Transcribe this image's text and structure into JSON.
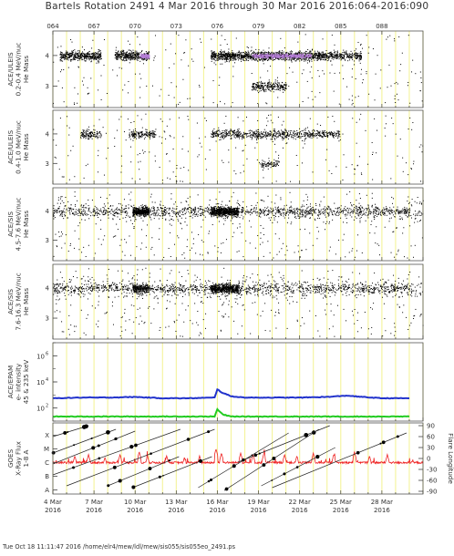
{
  "header": {
    "title": "Bartels Rotation 2491     4 Mar 2016 through 30 Mar 2016     2016:064-2016:090"
  },
  "footer": {
    "text": "Tue Oct 18 11:11:47 2016   /home/elr4/mew/ldl/mew/sis055/sis055eo_2491.ps"
  },
  "chart_data": [
    {
      "type": "scatter",
      "panel": "ace-ulels-0.2-0.4",
      "ylabel_lines": [
        "ACE/ULEIS",
        "0.2-0.4 MeV/nuc",
        "He Mass"
      ],
      "ytick_labels": [
        "3",
        "4"
      ],
      "ylim": [
        2.3,
        4.8
      ],
      "clusters": [
        {
          "day_range": [
            64.5,
            67.5
          ],
          "mass": 4.0,
          "density": 420
        },
        {
          "day_range": [
            68.5,
            71.0
          ],
          "mass": 4.0,
          "density": 380
        },
        {
          "day_range": [
            75.5,
            80.0
          ],
          "mass": 4.0,
          "density": 700
        },
        {
          "day_range": [
            78.5,
            81.0
          ],
          "mass": 3.0,
          "density": 240
        },
        {
          "day_range": [
            80.0,
            84.0
          ],
          "mass": 4.0,
          "density": 600
        },
        {
          "day_range": [
            84.0,
            86.5
          ],
          "mass": 4.0,
          "density": 250
        }
      ],
      "highlight_color": "#b57ed6"
    },
    {
      "type": "scatter",
      "panel": "ace-ulels-0.4-1.0",
      "ylabel_lines": [
        "ACE/ULEIS",
        "0.4-1.0 MeV/nuc",
        "He Mass"
      ],
      "ytick_labels": [
        "3",
        "4"
      ],
      "ylim": [
        2.3,
        4.8
      ],
      "clusters": [
        {
          "day_range": [
            66.0,
            67.5
          ],
          "mass": 4.0,
          "density": 120
        },
        {
          "day_range": [
            69.5,
            71.5
          ],
          "mass": 4.0,
          "density": 160
        },
        {
          "day_range": [
            75.5,
            85.0
          ],
          "mass": 4.0,
          "density": 650
        },
        {
          "day_range": [
            79.0,
            80.5
          ],
          "mass": 3.0,
          "density": 80
        }
      ]
    },
    {
      "type": "scatter",
      "panel": "ace-sis-4.5-7.6",
      "ylabel_lines": [
        "ACE/SIS",
        "4.5-7.6 MeV/nuc",
        "He Mass"
      ],
      "ytick_labels": [
        "3",
        "4"
      ],
      "ylim": [
        2.3,
        4.8
      ],
      "clusters": [
        {
          "day_range": [
            64.0,
            69.5
          ],
          "mass": 4.0,
          "density": 140
        },
        {
          "day_range": [
            69.8,
            71.0
          ],
          "mass": 4.0,
          "density": 400
        },
        {
          "day_range": [
            71.0,
            75.5
          ],
          "mass": 4.0,
          "density": 130
        },
        {
          "day_range": [
            75.5,
            77.5
          ],
          "mass": 4.0,
          "density": 650
        },
        {
          "day_range": [
            77.5,
            90.0
          ],
          "mass": 4.0,
          "density": 420
        }
      ]
    },
    {
      "type": "scatter",
      "panel": "ace-sis-7.6-16.3",
      "ylabel_lines": [
        "ACE/SIS",
        "7.6-16.3 MeV/nuc",
        "He Mass"
      ],
      "ytick_labels": [
        "3",
        "4"
      ],
      "ylim": [
        2.3,
        4.8
      ],
      "clusters": [
        {
          "day_range": [
            64.0,
            69.5
          ],
          "mass": 4.0,
          "density": 160
        },
        {
          "day_range": [
            69.8,
            71.0
          ],
          "mass": 4.0,
          "density": 250
        },
        {
          "day_range": [
            71.0,
            75.5
          ],
          "mass": 4.0,
          "density": 140
        },
        {
          "day_range": [
            75.5,
            77.5
          ],
          "mass": 4.0,
          "density": 550
        },
        {
          "day_range": [
            77.5,
            90.0
          ],
          "mass": 4.0,
          "density": 380
        }
      ]
    },
    {
      "type": "line",
      "panel": "ace-epam",
      "ylabel_lines": [
        "ACE/EPAM",
        "e- intensity",
        "45 & 235 keV"
      ],
      "ytick_labels": [
        "10",
        "10",
        "10"
      ],
      "ytick_exponents": [
        "2",
        "4",
        "6"
      ],
      "log_ylim": [
        1,
        7
      ],
      "series": [
        {
          "color": "#2233cc",
          "x": [
            64,
            66,
            68,
            70,
            71,
            72,
            74,
            75.8,
            76.0,
            76.3,
            77,
            78,
            80,
            82,
            84,
            85.5,
            86.5,
            88,
            90
          ],
          "y_log": [
            2.75,
            2.8,
            2.8,
            2.85,
            2.8,
            2.75,
            2.75,
            2.8,
            3.45,
            3.2,
            2.9,
            2.8,
            2.8,
            2.8,
            2.85,
            2.95,
            2.85,
            2.75,
            2.75
          ]
        },
        {
          "color": "#22cc22",
          "x": [
            64,
            70,
            75.8,
            76.0,
            76.4,
            77,
            90
          ],
          "y_log": [
            1.35,
            1.35,
            1.35,
            1.9,
            1.5,
            1.35,
            1.35
          ]
        }
      ]
    },
    {
      "type": "line",
      "panel": "goes-xray",
      "ylabel_lines": [
        "GOES",
        "X-Ray Flux",
        "1-8 A"
      ],
      "left_ticks": [
        "X",
        "M",
        "C",
        "B",
        "A"
      ],
      "right_ylabel": "Flare Longitude",
      "right_ticks": [
        "90",
        "60",
        "30",
        "0",
        "-30",
        "-60",
        "-90"
      ],
      "flux_color": "#ee2222",
      "flux_base_class": 2.0,
      "flux_peaks": [
        {
          "x": 65.6,
          "class": 2.5
        },
        {
          "x": 66.6,
          "class": 2.6
        },
        {
          "x": 67.8,
          "class": 2.4
        },
        {
          "x": 68.9,
          "class": 2.6
        },
        {
          "x": 70.3,
          "class": 2.8
        },
        {
          "x": 70.9,
          "class": 2.5
        },
        {
          "x": 72.3,
          "class": 2.5
        },
        {
          "x": 73.6,
          "class": 2.4
        },
        {
          "x": 74.7,
          "class": 2.5
        },
        {
          "x": 75.9,
          "class": 3.0
        },
        {
          "x": 76.3,
          "class": 2.7
        },
        {
          "x": 77.7,
          "class": 2.7
        },
        {
          "x": 78.6,
          "class": 2.6
        },
        {
          "x": 79.4,
          "class": 2.7
        },
        {
          "x": 80.9,
          "class": 2.6
        },
        {
          "x": 81.8,
          "class": 2.5
        },
        {
          "x": 83.0,
          "class": 2.7
        },
        {
          "x": 84.5,
          "class": 2.6
        },
        {
          "x": 86.0,
          "class": 2.8
        },
        {
          "x": 87.1,
          "class": 2.5
        },
        {
          "x": 88.4,
          "class": 2.6
        }
      ],
      "longitude_tracks": [
        {
          "x": [
            63.8,
            66.6
          ],
          "lon": [
            60,
            95
          ]
        },
        {
          "x": [
            64.0,
            68.6
          ],
          "lon": [
            15,
            80
          ]
        },
        {
          "x": [
            64.0,
            70.0
          ],
          "lon": [
            -15,
            75
          ]
        },
        {
          "x": [
            64.0,
            73.3
          ],
          "lon": [
            -45,
            80
          ]
        },
        {
          "x": [
            65.0,
            75.8
          ],
          "lon": [
            -75,
            80
          ]
        },
        {
          "x": [
            68.0,
            73.2
          ],
          "lon": [
            -75,
            5
          ]
        },
        {
          "x": [
            69.8,
            75.6
          ],
          "lon": [
            -80,
            5
          ]
        },
        {
          "x": [
            74.6,
            81.2
          ],
          "lon": [
            -80,
            70
          ]
        },
        {
          "x": [
            76.5,
            83.4
          ],
          "lon": [
            -88,
            80
          ]
        },
        {
          "x": [
            79.2,
            84.6
          ],
          "lon": [
            -75,
            30
          ]
        },
        {
          "x": [
            80.0,
            89.8
          ],
          "lon": [
            -80,
            70
          ]
        },
        {
          "x": [
            77.5,
            84.2
          ],
          "lon": [
            -10,
            90
          ]
        }
      ]
    }
  ],
  "xaxis": {
    "top_ticks": [
      "064",
      "067",
      "070",
      "073",
      "076",
      "079",
      "082",
      "085",
      "088"
    ],
    "bottom_ticks": [
      {
        "day": "4 Mar",
        "year": "2016"
      },
      {
        "day": "7 Mar",
        "year": "2016"
      },
      {
        "day": "10 Mar",
        "year": "2016"
      },
      {
        "day": "13 Mar",
        "year": "2016"
      },
      {
        "day": "16 Mar",
        "year": "2016"
      },
      {
        "day": "19 Mar",
        "year": "2016"
      },
      {
        "day": "22 Mar",
        "year": "2016"
      },
      {
        "day": "25 Mar",
        "year": "2016"
      },
      {
        "day": "28 Mar",
        "year": "2016"
      }
    ],
    "xlim": [
      64,
      91
    ],
    "grid_color": "#f4f39a"
  }
}
